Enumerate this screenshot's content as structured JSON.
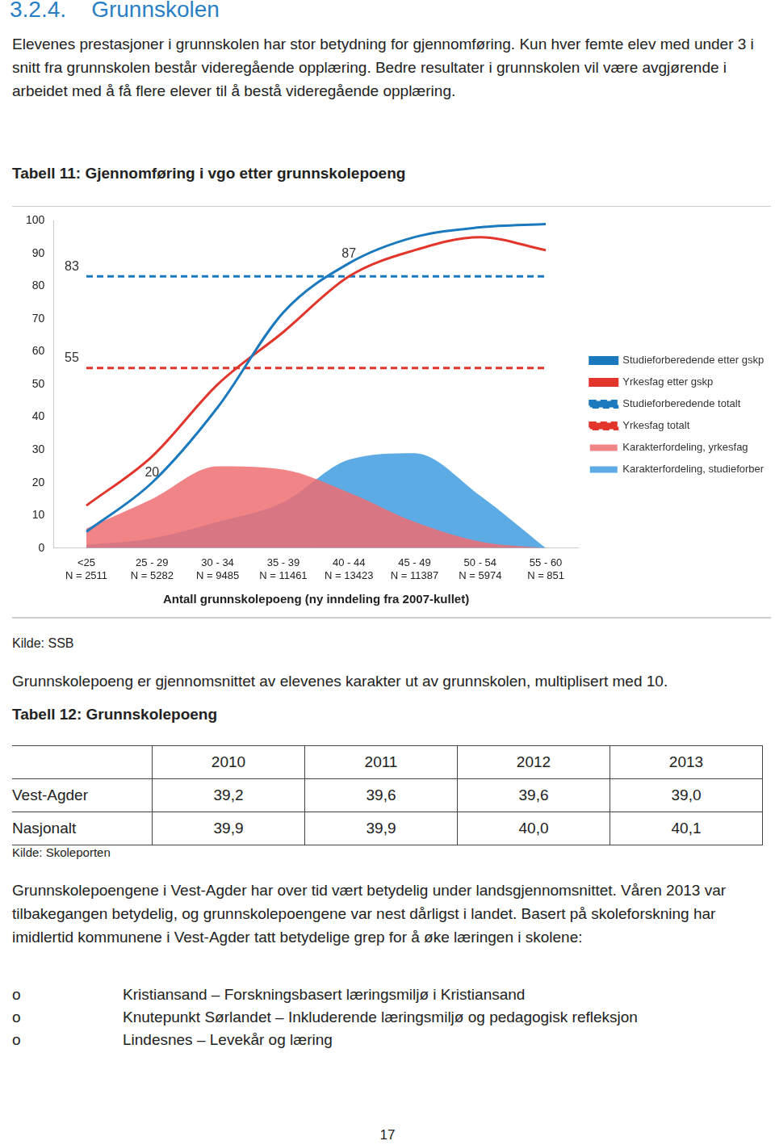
{
  "heading": "3.2.4.    Grunnskolen",
  "intro": "Elevenes prestasjoner i grunnskolen har stor betydning for gjennomføring. Kun hver femte elev med under 3 i snitt fra grunnskolen består videregående opplæring. Bedre resultater i grunnskolen vil være avgjørende i arbeidet med å få flere elever til å bestå videregående opplæring.",
  "table11": {
    "caption": "Tabell 11: Gjennomføring i vgo etter grunnskolepoeng",
    "source": "Kilde: SSB"
  },
  "chart_data": {
    "type": "line",
    "x_label": "Antall grunnskolepoeng (ny inndeling fra 2007-kullet)",
    "categories": [
      "<25",
      "25 - 29",
      "30 - 34",
      "35 - 39",
      "40 - 44",
      "45 - 49",
      "50 - 54",
      "55 - 60"
    ],
    "category_sublabels": [
      "N = 2511",
      "N = 5282",
      "N = 9485",
      "N = 11461",
      "N = 13423",
      "N = 11387",
      "N = 5974",
      "N = 851"
    ],
    "ylim": [
      0,
      100
    ],
    "yticks": [
      0,
      10,
      20,
      30,
      40,
      50,
      60,
      70,
      80,
      90,
      100
    ],
    "grid": false,
    "legend": "right",
    "series": [
      {
        "name": "Karakterfordeling, studieforberedende",
        "type": "area",
        "color": "#3f9ce0",
        "values": [
          1,
          3,
          8,
          14,
          27,
          29,
          16,
          0
        ]
      },
      {
        "name": "Karakterfordeling, yrkesfag",
        "type": "area",
        "color": "#ef6f72",
        "values": [
          6,
          15,
          25,
          24,
          17,
          8,
          2,
          0
        ]
      },
      {
        "name": "Studieforberedende etter gskp",
        "type": "line",
        "color": "#1b79bd",
        "line_style": "solid",
        "values": [
          5,
          20,
          43,
          72,
          87,
          95,
          98,
          99
        ]
      },
      {
        "name": "Yrkesfag etter gskp",
        "type": "line",
        "color": "#e2352b",
        "line_style": "solid",
        "values": [
          13,
          28,
          50,
          66,
          83,
          91,
          95,
          91
        ]
      },
      {
        "name": "Studieforberedende totalt",
        "type": "line",
        "color": "#1b79bd",
        "line_style": "dashed",
        "values": [
          83,
          83,
          83,
          83,
          83,
          83,
          83,
          83
        ]
      },
      {
        "name": "Yrkesfag totalt",
        "type": "line",
        "color": "#e2352b",
        "line_style": "dashed",
        "values": [
          55,
          55,
          55,
          55,
          55,
          55,
          55,
          55
        ]
      }
    ],
    "annotations": [
      {
        "text": "83",
        "category": "<25",
        "value": 83
      },
      {
        "text": "55",
        "category": "<25",
        "value": 55
      },
      {
        "text": "20",
        "category": "25 - 29",
        "value": 20
      },
      {
        "text": "87",
        "category": "40 - 44",
        "value": 87
      }
    ]
  },
  "definition": "Grunnskolepoeng er gjennomsnittet av elevenes karakter ut av grunnskolen, multiplisert med 10.",
  "table12": {
    "caption": "Tabell 12: Grunnskolepoeng",
    "header": [
      "",
      "2010",
      "2011",
      "2012",
      "2013"
    ],
    "rows": [
      [
        "Vest-Agder",
        "39,2",
        "39,6",
        "39,6",
        "39,0"
      ],
      [
        "Nasjonalt",
        "39,9",
        "39,9",
        "40,0",
        "40,1"
      ]
    ],
    "source": "Kilde: Skoleporten"
  },
  "paragraph": "Grunnskolepoengene i Vest-Agder har over tid vært betydelig under landsgjennomsnittet. Våren 2013 var tilbakegangen betydelig, og grunnskolepoengene var nest dårligst i landet. Basert på skoleforskning har imidlertid kommunene i Vest-Agder tatt betydelige grep for å øke læringen i skolene:",
  "list": {
    "bullet": "o",
    "items": [
      "Kristiansand – Forskningsbasert læringsmiljø i Kristiansand",
      "Knutepunkt Sørlandet – Inkluderende læringsmiljø og pedagogisk refleksjon",
      "Lindesnes – Levekår og læring"
    ]
  },
  "page_number": "17"
}
